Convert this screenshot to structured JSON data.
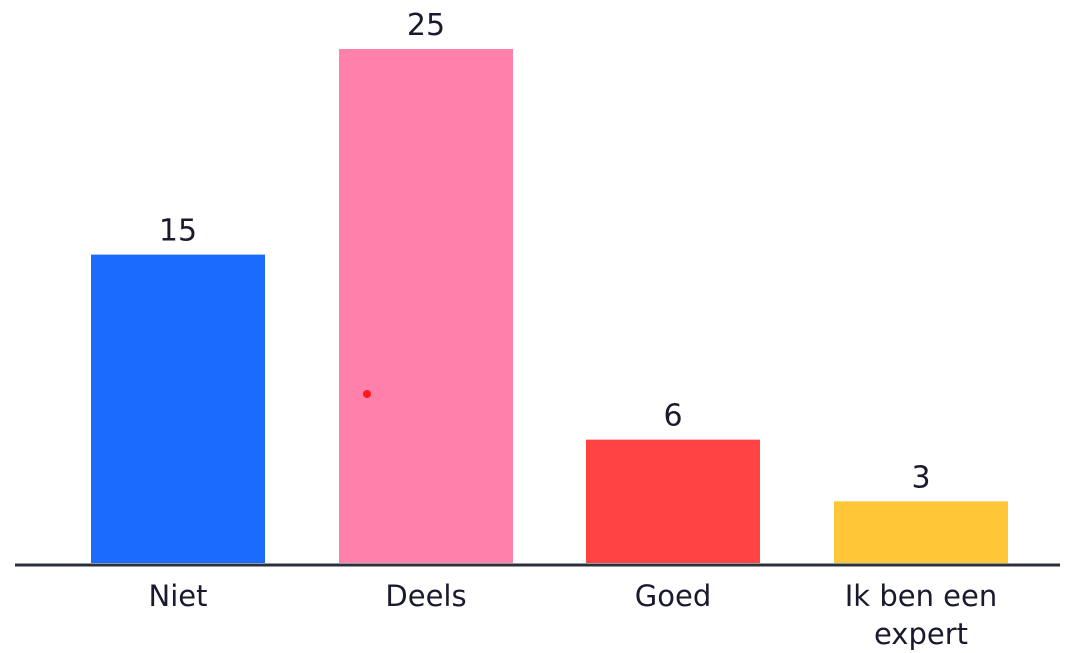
{
  "chart_data": {
    "type": "bar",
    "categories": [
      "Niet",
      "Deels",
      "Goed",
      "Ik ben een expert"
    ],
    "values": [
      15,
      25,
      6,
      3
    ],
    "colors": [
      "#1b6bff",
      "#ff80ab",
      "#ff4242",
      "#ffc637"
    ],
    "axis_color": "#2a2f3c",
    "label_color": "#1a1a2e",
    "marker_color": "#ff1a1a",
    "ylim": [
      0,
      25
    ],
    "grid": false,
    "legend": "none"
  }
}
